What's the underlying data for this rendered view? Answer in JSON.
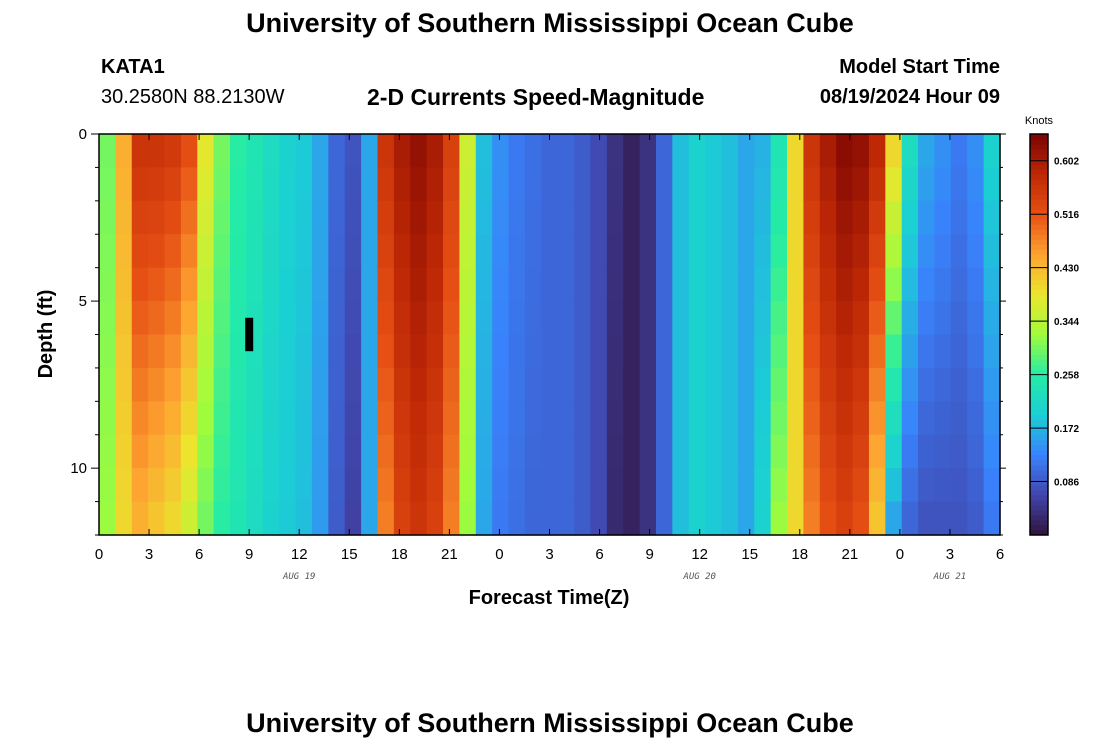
{
  "page": {
    "title_top": "University of Southern Mississippi Ocean Cube",
    "title_bottom": "University of Southern Mississippi Ocean Cube",
    "station": "KATA1",
    "location": "30.2580N  88.2130W",
    "model_start_label": "Model Start Time",
    "model_start_value": "08/19/2024 Hour 09"
  },
  "chart_data": {
    "type": "heatmap",
    "title": "2-D Currents Speed-Magnitude",
    "xlabel": "Forecast Time(Z)",
    "ylabel": "Depth (ft)",
    "x_tick_labels": [
      "0",
      "3",
      "6",
      "9",
      "12",
      "15",
      "18",
      "21",
      "0",
      "3",
      "6",
      "9",
      "12",
      "15",
      "18",
      "21",
      "0",
      "3",
      "6"
    ],
    "x_hours_range": [
      0,
      54
    ],
    "date_labels": [
      {
        "text": "AUG 19",
        "hour": 12
      },
      {
        "text": "AUG 20",
        "hour": 36
      },
      {
        "text": "AUG 21",
        "hour": 51
      }
    ],
    "y_tick_labels": [
      "0",
      "5",
      "10"
    ],
    "y_tick_values": [
      0,
      5,
      10
    ],
    "ylim": [
      0,
      12
    ],
    "colorbar": {
      "unit": "Knots",
      "ticks": [
        "0.602",
        "0.516",
        "0.430",
        "0.344",
        "0.258",
        "0.172",
        "0.086"
      ],
      "tick_values": [
        0.602,
        0.516,
        0.43,
        0.344,
        0.258,
        0.172,
        0.086
      ],
      "range": [
        0.0,
        0.645
      ]
    },
    "speed_surface_knots": [
      0.3,
      0.44,
      0.56,
      0.56,
      0.55,
      0.52,
      0.38,
      0.3,
      0.26,
      0.24,
      0.22,
      0.2,
      0.19,
      0.16,
      0.1,
      0.08,
      0.16,
      0.56,
      0.6,
      0.62,
      0.6,
      0.54,
      0.36,
      0.18,
      0.14,
      0.12,
      0.11,
      0.1,
      0.1,
      0.09,
      0.07,
      0.04,
      0.02,
      0.04,
      0.1,
      0.18,
      0.2,
      0.19,
      0.18,
      0.16,
      0.17,
      0.24,
      0.4,
      0.56,
      0.6,
      0.63,
      0.62,
      0.58,
      0.4,
      0.22,
      0.16,
      0.14,
      0.12,
      0.14,
      0.2
    ],
    "speed_bottom_knots": [
      0.32,
      0.4,
      0.44,
      0.42,
      0.4,
      0.36,
      0.3,
      0.26,
      0.24,
      0.22,
      0.2,
      0.19,
      0.18,
      0.15,
      0.09,
      0.06,
      0.16,
      0.48,
      0.54,
      0.56,
      0.54,
      0.48,
      0.32,
      0.16,
      0.12,
      0.11,
      0.1,
      0.1,
      0.1,
      0.09,
      0.07,
      0.03,
      0.02,
      0.04,
      0.1,
      0.18,
      0.2,
      0.19,
      0.18,
      0.16,
      0.2,
      0.32,
      0.4,
      0.48,
      0.52,
      0.54,
      0.52,
      0.42,
      0.16,
      0.1,
      0.08,
      0.08,
      0.08,
      0.09,
      0.12
    ],
    "missing_block": {
      "hour": 9.0,
      "depth_range": [
        5.5,
        6.5
      ]
    }
  }
}
